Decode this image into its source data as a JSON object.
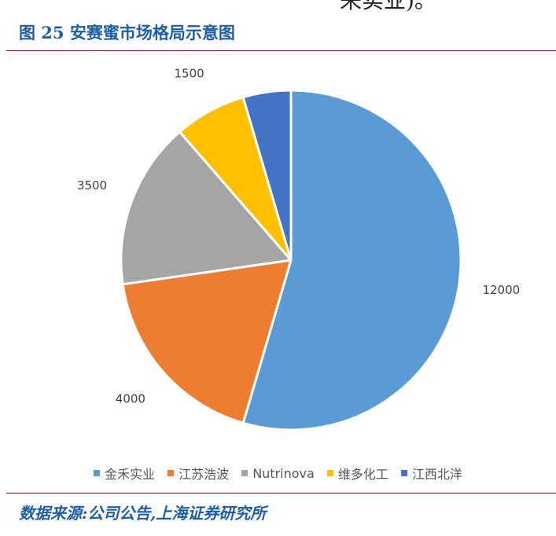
{
  "page": {
    "top_fragment": "来实业)。",
    "figure_title": "图 25 安赛蜜市场格局示意图",
    "source": "数据来源:公司公告,上海证券研究所"
  },
  "chart_data": {
    "type": "pie",
    "title": "",
    "legend_position": "bottom",
    "slices": [
      {
        "label": "金禾实业",
        "value": 12000,
        "color": "#5b9bd5"
      },
      {
        "label": "江苏浩波",
        "value": 4000,
        "color": "#ed7d31"
      },
      {
        "label": "Nutrinova",
        "value": 3500,
        "color": "#a5a5a5"
      },
      {
        "label": "维多化工",
        "value": 1500,
        "color": "#ffc000"
      },
      {
        "label": "江西北洋",
        "value": 1000,
        "color": "#4472c4"
      }
    ]
  }
}
